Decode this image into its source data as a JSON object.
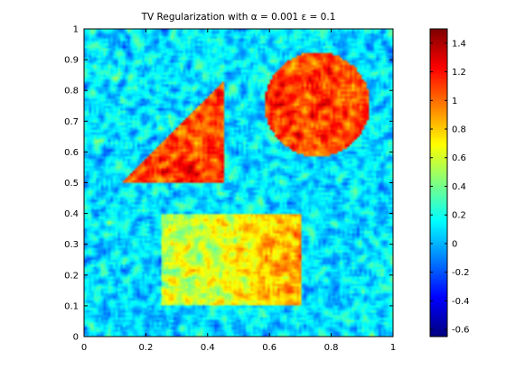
{
  "chart_data": {
    "type": "heatmap",
    "title": "TV Regularization with α = 0.001 ε = 0.1",
    "xlabel": "",
    "ylabel": "",
    "xlim": [
      0,
      1
    ],
    "ylim": [
      0,
      1
    ],
    "x_ticks": [
      "0",
      "0.2",
      "0.4",
      "0.6",
      "0.8",
      "1"
    ],
    "x_tick_values": [
      0,
      0.2,
      0.4,
      0.6,
      0.8,
      1
    ],
    "y_ticks": [
      "0",
      "0.1",
      "0.2",
      "0.3",
      "0.4",
      "0.5",
      "0.6",
      "0.7",
      "0.8",
      "0.9",
      "1"
    ],
    "y_tick_values": [
      0,
      0.1,
      0.2,
      0.3,
      0.4,
      0.5,
      0.6,
      0.7,
      0.8,
      0.9,
      1
    ],
    "colormap": "jet",
    "color_range": [
      -0.65,
      1.5
    ],
    "colorbar_ticks": [
      "-0.6",
      "-0.4",
      "-0.2",
      "0",
      "0.2",
      "0.4",
      "0.6",
      "0.8",
      "1",
      "1.2",
      "1.4"
    ],
    "colorbar_tick_values": [
      -0.6,
      -0.4,
      -0.2,
      0,
      0.2,
      0.4,
      0.6,
      0.8,
      1,
      1.2,
      1.4
    ],
    "background_value": 0.1,
    "noise_amplitude": 0.35,
    "shapes": [
      {
        "shape": "triangle",
        "vertices": [
          [
            0.12,
            0.5
          ],
          [
            0.45,
            0.5
          ],
          [
            0.45,
            0.83
          ]
        ],
        "value": 1.1
      },
      {
        "shape": "circle",
        "center": [
          0.755,
          0.755
        ],
        "radius": 0.17,
        "value": 1.1
      },
      {
        "shape": "rectangle",
        "x_range": [
          0.25,
          0.7
        ],
        "y_range": [
          0.1,
          0.4
        ],
        "value_left": 0.55,
        "value_right": 0.9
      }
    ]
  }
}
